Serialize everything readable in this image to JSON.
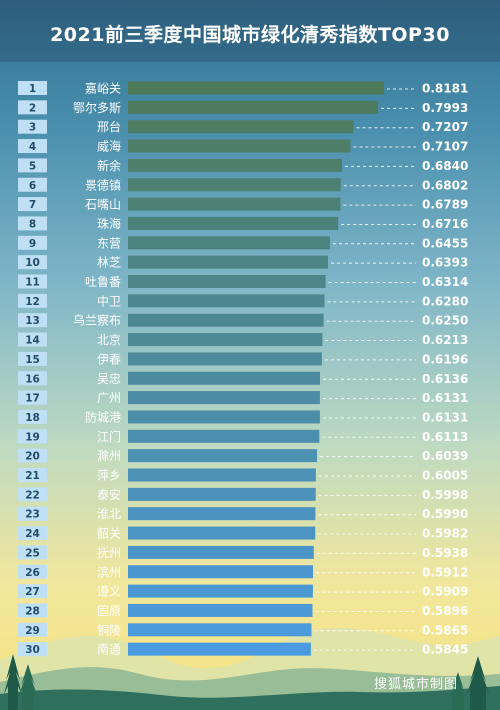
{
  "chart_data": {
    "type": "bar",
    "title": "2021前三季度中国城市绿化清秀指数TOP30",
    "ranks": [
      "1",
      "2",
      "3",
      "4",
      "5",
      "6",
      "7",
      "8",
      "9",
      "10",
      "11",
      "12",
      "13",
      "14",
      "15",
      "16",
      "17",
      "18",
      "19",
      "20",
      "21",
      "22",
      "23",
      "24",
      "25",
      "26",
      "27",
      "28",
      "29",
      "30"
    ],
    "categories": [
      "嘉峪关",
      "鄂尔多斯",
      "邢台",
      "威海",
      "新余",
      "景德镇",
      "石嘴山",
      "珠海",
      "东营",
      "林芝",
      "吐鲁番",
      "中卫",
      "乌兰察布",
      "北京",
      "伊春",
      "吴忠",
      "广州",
      "防城港",
      "江门",
      "滁州",
      "萍乡",
      "泰安",
      "淮北",
      "韶关",
      "抚州",
      "滨州",
      "遵义",
      "固原",
      "铜陵",
      "南通"
    ],
    "values": [
      0.8181,
      0.7993,
      0.7207,
      0.7107,
      0.684,
      0.6802,
      0.6789,
      0.6716,
      0.6455,
      0.6393,
      0.6314,
      0.628,
      0.625,
      0.6213,
      0.6196,
      0.6136,
      0.6131,
      0.6131,
      0.6113,
      0.6039,
      0.6005,
      0.5998,
      0.599,
      0.5982,
      0.5938,
      0.5912,
      0.5909,
      0.5896,
      0.5865,
      0.5845
    ],
    "value_labels": [
      "0.8181",
      "0.7993",
      "0.7207",
      "0.7107",
      "0.6840",
      "0.6802",
      "0.6789",
      "0.6716",
      "0.6455",
      "0.6393",
      "0.6314",
      "0.6280",
      "0.6250",
      "0.6213",
      "0.6196",
      "0.6136",
      "0.6131",
      "0.6131",
      "0.6113",
      "0.6039",
      "0.6005",
      "0.5998",
      "0.5990",
      "0.5982",
      "0.5938",
      "0.5912",
      "0.5909",
      "0.5896",
      "0.5865",
      "0.5845"
    ],
    "colors": {
      "bar_top": "#4e7a5a",
      "bar_bottom": "#4b9be0",
      "rank_box": "#bfe0f4",
      "rank_text": "#1f4d6b",
      "label_text": "#ffffff",
      "leader": "#ffffff"
    }
  },
  "footer": {
    "watermark": "搜狐城市制图"
  }
}
